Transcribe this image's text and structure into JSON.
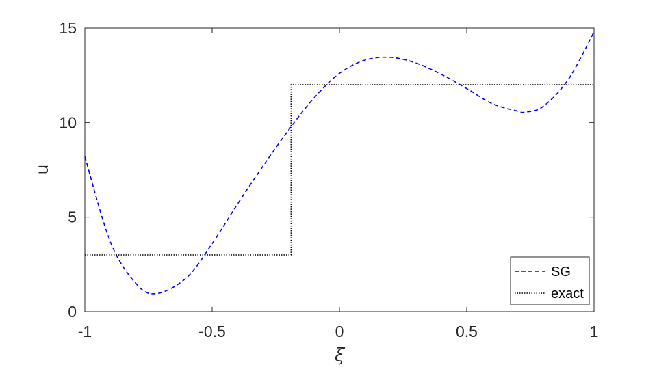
{
  "chart_data": {
    "type": "line",
    "xlabel": "ξ",
    "ylabel": "u",
    "xlim": [
      -1,
      1
    ],
    "ylim": [
      0,
      15
    ],
    "xticks": [
      -1,
      -0.5,
      0,
      0.5,
      1
    ],
    "xtick_labels": [
      "-1",
      "-0.5",
      "0",
      "0.5",
      "1"
    ],
    "yticks": [
      0,
      5,
      10,
      15
    ],
    "ytick_labels": [
      "0",
      "5",
      "10",
      "15"
    ],
    "grid": false,
    "legend_position": "bottom-right",
    "series": [
      {
        "name": "SG",
        "color": "#0000ff",
        "style": "dashed",
        "x": [
          -1.0,
          -0.9,
          -0.8,
          -0.72,
          -0.6,
          -0.5,
          -0.4,
          -0.3,
          -0.2,
          -0.1,
          0.0,
          0.1,
          0.2,
          0.3,
          0.4,
          0.5,
          0.6,
          0.7,
          0.73,
          0.8,
          0.9,
          1.0
        ],
        "y": [
          8.2,
          3.7,
          1.5,
          0.95,
          1.8,
          3.6,
          5.7,
          7.7,
          9.6,
          11.3,
          12.6,
          13.3,
          13.45,
          13.15,
          12.55,
          11.8,
          11.0,
          10.6,
          10.55,
          10.85,
          12.3,
          14.8
        ]
      },
      {
        "name": "exact",
        "color": "#000000",
        "style": "dotted",
        "x": [
          -1.0,
          -0.19,
          -0.19,
          1.0
        ],
        "y": [
          3,
          3,
          12,
          12
        ]
      }
    ]
  }
}
